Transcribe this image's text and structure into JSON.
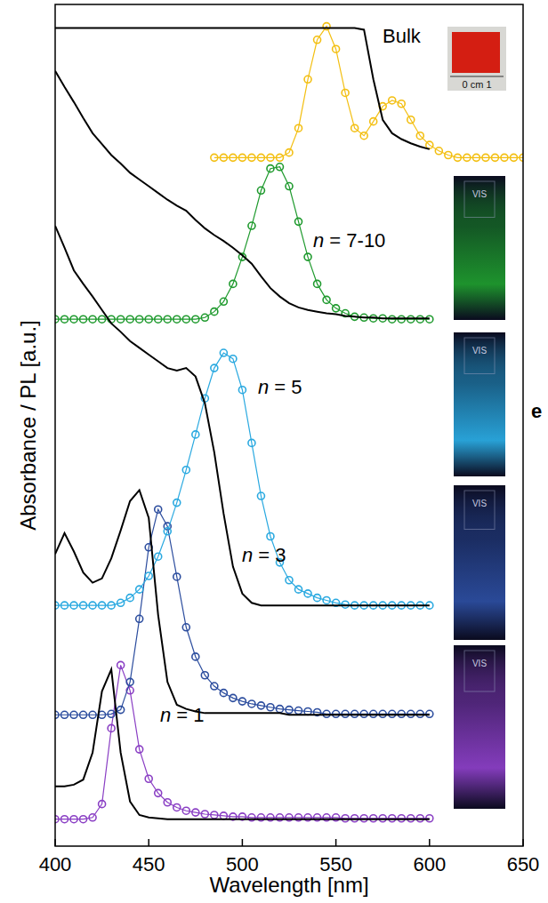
{
  "chart_data": {
    "type": "line",
    "x_label": "Wavelength [nm]",
    "y_label": "Absorbance / PL [a.u.]",
    "xlim": [
      400,
      650
    ],
    "xticks": [
      400,
      450,
      500,
      550,
      600,
      650
    ],
    "ylim": [
      0,
      100
    ],
    "tick_labels": "x",
    "grid": false,
    "x": [
      400,
      405,
      410,
      415,
      420,
      425,
      430,
      435,
      440,
      445,
      450,
      455,
      460,
      465,
      470,
      475,
      480,
      485,
      490,
      495,
      500,
      505,
      510,
      515,
      520,
      525,
      530,
      535,
      540,
      545,
      550,
      555,
      560,
      565,
      570,
      575,
      580,
      585,
      590,
      595,
      600,
      605,
      610,
      615,
      620,
      625,
      630,
      635,
      640,
      645,
      650
    ],
    "annotations": [
      "n = 1",
      "n = 3",
      "n = 5",
      "n = 7-10",
      "Bulk"
    ],
    "inset_label": "0 cm 1",
    "vial_label": "VIS",
    "panel_letter": "e",
    "series": [
      {
        "type": "line",
        "color": "#000000",
        "line_style": "solid",
        "values": [
          7.1,
          7.1,
          7.3,
          7.9,
          11.1,
          18.4,
          21.0,
          11.1,
          5.3,
          3.7,
          3.4,
          3.3,
          3.2,
          3.2,
          3.2,
          3.2,
          3.2,
          3.2,
          3.2,
          3.2,
          3.2,
          3.2,
          3.2,
          3.2,
          3.2,
          3.2,
          3.2,
          3.2,
          3.2,
          3.2,
          3.2,
          3.2,
          3.2,
          3.2,
          3.2,
          3.2,
          3.2,
          3.2,
          3.2,
          3.2,
          3.2,
          null,
          null,
          null,
          null,
          null,
          null,
          null,
          null,
          null,
          null
        ]
      },
      {
        "type": "line",
        "color": "#8a3fc4",
        "marker": "circle",
        "values": [
          3.2,
          3.2,
          3.2,
          3.2,
          3.4,
          5.0,
          14.0,
          21.5,
          18.5,
          11.5,
          8.0,
          6.3,
          5.2,
          4.6,
          4.2,
          4.0,
          3.8,
          3.7,
          3.6,
          3.5,
          3.5,
          3.4,
          3.4,
          3.4,
          3.4,
          3.4,
          3.4,
          3.4,
          3.4,
          3.4,
          3.4,
          3.3,
          3.3,
          3.3,
          3.3,
          3.3,
          3.3,
          3.3,
          3.3,
          3.3,
          3.3,
          null,
          null,
          null,
          null,
          null,
          null,
          null,
          null,
          null,
          null
        ]
      },
      {
        "type": "line",
        "color": "#000000",
        "line_style": "solid",
        "values": [
          34.7,
          37.2,
          35.0,
          32.5,
          31.3,
          31.8,
          34.2,
          37.5,
          41.0,
          42.3,
          39.0,
          27.5,
          19.5,
          16.8,
          16.3,
          16.0,
          15.8,
          15.8,
          15.8,
          15.8,
          15.8,
          15.8,
          15.8,
          15.8,
          15.8,
          15.6,
          15.6,
          15.6,
          15.6,
          15.6,
          15.6,
          15.6,
          15.6,
          15.6,
          15.6,
          15.6,
          15.6,
          15.6,
          15.6,
          15.6,
          15.6,
          null,
          null,
          null,
          null,
          null,
          null,
          null,
          null,
          null,
          null
        ]
      },
      {
        "type": "line",
        "color": "#2c4d9e",
        "marker": "circle",
        "values": [
          15.6,
          15.6,
          15.6,
          15.6,
          15.6,
          15.6,
          15.7,
          16.2,
          19.5,
          27.0,
          35.5,
          40.0,
          38.0,
          32.0,
          26.0,
          22.5,
          20.3,
          19.0,
          18.2,
          17.6,
          17.2,
          16.9,
          16.7,
          16.5,
          16.3,
          16.2,
          16.1,
          16.0,
          15.9,
          15.7,
          15.7,
          15.7,
          15.7,
          15.7,
          15.7,
          15.7,
          15.7,
          15.7,
          15.7,
          15.7,
          15.7,
          null,
          null,
          null,
          null,
          null,
          null,
          null,
          null,
          null,
          null
        ]
      },
      {
        "type": "line",
        "color": "#000000",
        "line_style": "solid",
        "values": [
          73.7,
          71.1,
          68.4,
          66.8,
          65.3,
          63.7,
          62.1,
          61.1,
          60.0,
          59.2,
          58.4,
          57.6,
          56.8,
          56.5,
          56.8,
          55.8,
          52.6,
          46.8,
          39.5,
          33.2,
          30.0,
          28.9,
          28.6,
          28.6,
          28.6,
          28.6,
          28.6,
          28.6,
          28.6,
          28.6,
          28.6,
          28.6,
          28.6,
          28.6,
          28.6,
          28.6,
          28.6,
          28.6,
          28.6,
          28.6,
          28.6,
          null,
          null,
          null,
          null,
          null,
          null,
          null,
          null,
          null,
          null
        ]
      },
      {
        "type": "line",
        "color": "#2aa9e0",
        "marker": "circle",
        "values": [
          28.6,
          28.6,
          28.6,
          28.6,
          28.6,
          28.6,
          28.6,
          28.9,
          29.5,
          30.5,
          32.1,
          34.4,
          37.4,
          40.8,
          44.7,
          48.9,
          53.2,
          56.8,
          58.6,
          57.9,
          54.2,
          47.9,
          41.6,
          36.8,
          33.7,
          31.6,
          30.5,
          30.0,
          29.5,
          29.2,
          28.9,
          28.7,
          28.6,
          28.6,
          28.6,
          28.6,
          28.6,
          28.6,
          28.6,
          28.6,
          28.6,
          null,
          null,
          null,
          null,
          null,
          null,
          null,
          null,
          null,
          null
        ]
      },
      {
        "type": "line",
        "color": "#000000",
        "line_style": "solid",
        "values": [
          92.1,
          90.2,
          88.4,
          86.5,
          84.7,
          83.4,
          82.1,
          81.1,
          80.0,
          79.2,
          78.4,
          77.6,
          76.8,
          76.1,
          75.5,
          74.4,
          73.4,
          72.6,
          71.9,
          71.1,
          70.2,
          69.2,
          67.7,
          66.3,
          65.3,
          64.5,
          64.0,
          63.7,
          63.5,
          63.3,
          63.2,
          63.0,
          62.9,
          62.8,
          62.8,
          62.7,
          62.7,
          62.7,
          62.7,
          62.7,
          62.7,
          null,
          null,
          null,
          null,
          null,
          null,
          null,
          null,
          null,
          null
        ]
      },
      {
        "type": "line",
        "color": "#1f9a2e",
        "marker": "circle",
        "values": [
          62.6,
          62.6,
          62.6,
          62.6,
          62.6,
          62.6,
          62.6,
          62.6,
          62.6,
          62.6,
          62.6,
          62.6,
          62.6,
          62.6,
          62.6,
          62.6,
          62.8,
          63.5,
          64.7,
          66.8,
          70.0,
          73.7,
          77.9,
          80.5,
          80.7,
          78.4,
          74.2,
          70.0,
          66.8,
          64.9,
          63.9,
          63.3,
          62.9,
          62.8,
          62.7,
          62.7,
          62.6,
          62.6,
          62.6,
          62.6,
          62.6,
          null,
          null,
          null,
          null,
          null,
          null,
          null,
          null,
          null,
          null
        ]
      },
      {
        "type": "line",
        "color": "#000000",
        "line_style": "solid",
        "values": [
          97.2,
          97.2,
          97.2,
          97.2,
          97.2,
          97.2,
          97.2,
          97.2,
          97.2,
          97.2,
          97.2,
          97.2,
          97.2,
          97.2,
          97.2,
          97.2,
          97.2,
          97.2,
          97.2,
          97.2,
          97.2,
          97.2,
          97.2,
          97.2,
          97.2,
          97.2,
          97.2,
          97.2,
          97.2,
          97.2,
          97.2,
          97.2,
          97.2,
          97.0,
          91.1,
          86.3,
          84.7,
          84.0,
          83.5,
          83.1,
          82.8,
          null,
          null,
          null,
          null,
          null,
          null,
          null,
          null,
          null,
          null
        ]
      },
      {
        "type": "line",
        "color": "#f3bf12",
        "marker": "circle",
        "values": [
          null,
          null,
          null,
          null,
          null,
          null,
          null,
          null,
          null,
          null,
          null,
          null,
          null,
          null,
          null,
          null,
          null,
          81.8,
          81.8,
          81.8,
          81.8,
          81.8,
          81.8,
          81.8,
          81.8,
          82.4,
          85.3,
          91.1,
          95.8,
          97.4,
          94.7,
          89.5,
          85.3,
          84.4,
          86.1,
          87.9,
          88.6,
          88.2,
          86.3,
          84.4,
          83.3,
          82.6,
          82.1,
          81.8,
          81.8,
          81.8,
          81.8,
          81.8,
          81.8,
          81.8,
          81.8
        ]
      }
    ]
  }
}
